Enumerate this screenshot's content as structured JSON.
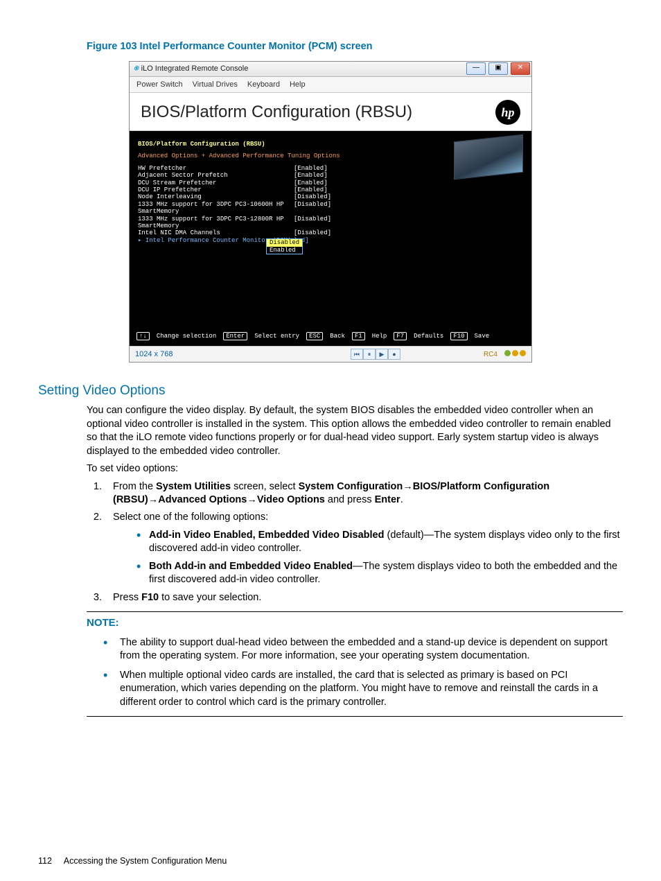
{
  "figure_caption": "Figure 103 Intel Performance Counter Monitor (PCM) screen",
  "screenshot": {
    "window_title": "iLO Integrated Remote Console",
    "win_btn_min": "—",
    "win_btn_max": "▣",
    "win_btn_close": "✕",
    "menubar": [
      "Power Switch",
      "Virtual Drives",
      "Keyboard",
      "Help"
    ],
    "bios_title": "BIOS/Platform Configuration (RBSU)",
    "hp_logo_text": "hp",
    "breadcrumb1": "BIOS/Platform Configuration (RBSU)",
    "breadcrumb2": "Advanced Options + Advanced Performance Tuning Options",
    "options": [
      {
        "label": "HW Prefetcher",
        "value": "[Enabled]",
        "selected": false
      },
      {
        "label": "Adjacent Sector Prefetch",
        "value": "[Enabled]",
        "selected": false
      },
      {
        "label": "DCU Stream Prefetcher",
        "value": "[Enabled]",
        "selected": false
      },
      {
        "label": "DCU IP Prefetcher",
        "value": "[Enabled]",
        "selected": false
      },
      {
        "label": "Node Interleaving",
        "value": "[Disabled]",
        "selected": false
      },
      {
        "label": "1333 MHz support for 3DPC PC3-10600H HP SmartMemory",
        "value": "[Disabled]",
        "selected": false
      },
      {
        "label": "1333 MHz support for 3DPC PC3-12800R HP SmartMemory",
        "value": "[Disabled]",
        "selected": false
      },
      {
        "label": "Intel NIC DMA Channels",
        "value": "[Disabled]",
        "selected": false
      },
      {
        "label": "Intel Performance Counter Monitor (PCM)",
        "value": "led]",
        "selected": true
      }
    ],
    "dropdown": {
      "items": [
        "Disabled",
        "Enabled"
      ],
      "highlight_index": 0
    },
    "key_hints": [
      {
        "key": "↑↓",
        "label": "Change selection"
      },
      {
        "key": "Enter",
        "label": "Select entry"
      },
      {
        "key": "ESC",
        "label": "Back"
      },
      {
        "key": "F1",
        "label": "Help"
      },
      {
        "key": "F7",
        "label": "Defaults"
      },
      {
        "key": "F10",
        "label": "Save"
      }
    ],
    "status": {
      "resolution": "1024 x 768",
      "controls": [
        "⏮",
        "⏸",
        "▶",
        "●"
      ],
      "rc": "RC4",
      "dot_colors": [
        "#7fae2f",
        "#e0a000",
        "#e0a000"
      ]
    }
  },
  "section_title": "Setting Video Options",
  "intro_para": "You can configure the video display. By default, the system BIOS disables the embedded video controller when an optional video controller is installed in the system. This option allows the embedded video controller to remain enabled so that the iLO remote video functions properly or for dual-head video support. Early system startup video is always displayed to the embedded video controller.",
  "lead_line": "To set video options:",
  "step1": {
    "pre": "From the ",
    "b1": "System Utilities",
    "mid1": " screen, select ",
    "b2": "System Configuration",
    "arr1": "→",
    "b3": "BIOS/Platform Configuration (RBSU)",
    "arr2": "→",
    "b4": "Advanced Options",
    "arr3": "→",
    "b5": "Video Options",
    "mid2": " and press ",
    "b6": "Enter",
    "post": "."
  },
  "step2_text": "Select one of the following options:",
  "step2_bullets": [
    {
      "bold": "Add-in Video Enabled, Embedded Video Disabled",
      "rest": " (default)—The system displays video only to the first discovered add-in video controller."
    },
    {
      "bold": "Both Add-in and Embedded Video Enabled",
      "rest": "—The system displays video to both the embedded and the first discovered add-in video controller."
    }
  ],
  "step3": {
    "pre": "Press ",
    "b": "F10",
    "post": " to save your selection."
  },
  "note_label": "NOTE:",
  "note_items": [
    "The ability to support dual-head video between the embedded and a stand-up device is dependent on support from the operating system. For more information, see your operating system documentation.",
    "When multiple optional video cards are installed, the card that is selected as primary is based on PCI enumeration, which varies depending on the platform. You might have to remove and reinstall the cards in a different order to control which card is the primary controller."
  ],
  "footer": {
    "page": "112",
    "text": "Accessing the System Configuration Menu"
  },
  "colors": {
    "accent": "#0073ae",
    "bios_bg": "#000000",
    "bios_highlight": "#6fb6ff",
    "bios_yellow": "#ffff88",
    "bios_orange": "#ff9c4a"
  }
}
